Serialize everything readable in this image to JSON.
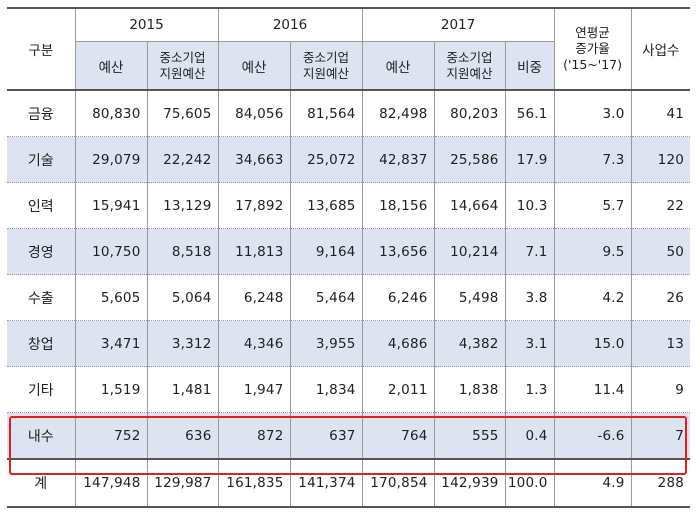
{
  "table": {
    "header": {
      "category": "구분",
      "years": [
        "2015",
        "2016",
        "2017"
      ],
      "budget": "예산",
      "sme_budget_line1": "중소기업",
      "sme_budget_line2": "지원예산",
      "share": "비중",
      "cagr_line1": "연평균",
      "cagr_line2": "증가율",
      "cagr_line3": "('15~'17)",
      "projects": "사업수"
    },
    "rows": [
      {
        "name": "금융",
        "b2015": "80,830",
        "s2015": "75,605",
        "b2016": "84,056",
        "s2016": "81,564",
        "b2017": "82,498",
        "s2017": "80,203",
        "share": "56.1",
        "cagr": "3.0",
        "projects": "41"
      },
      {
        "name": "기술",
        "b2015": "29,079",
        "s2015": "22,242",
        "b2016": "34,663",
        "s2016": "25,072",
        "b2017": "42,837",
        "s2017": "25,586",
        "share": "17.9",
        "cagr": "7.3",
        "projects": "120"
      },
      {
        "name": "인력",
        "b2015": "15,941",
        "s2015": "13,129",
        "b2016": "17,892",
        "s2016": "13,685",
        "b2017": "18,156",
        "s2017": "14,664",
        "share": "10.3",
        "cagr": "5.7",
        "projects": "22"
      },
      {
        "name": "경영",
        "b2015": "10,750",
        "s2015": "8,518",
        "b2016": "11,813",
        "s2016": "9,164",
        "b2017": "13,656",
        "s2017": "10,214",
        "share": "7.1",
        "cagr": "9.5",
        "projects": "50"
      },
      {
        "name": "수출",
        "b2015": "5,605",
        "s2015": "5,064",
        "b2016": "6,248",
        "s2016": "5,464",
        "b2017": "6,246",
        "s2017": "5,498",
        "share": "3.8",
        "cagr": "4.2",
        "projects": "26"
      },
      {
        "name": "창업",
        "b2015": "3,471",
        "s2015": "3,312",
        "b2016": "4,346",
        "s2016": "3,955",
        "b2017": "4,686",
        "s2017": "4,382",
        "share": "3.1",
        "cagr": "15.0",
        "projects": "13"
      },
      {
        "name": "기타",
        "b2015": "1,519",
        "s2015": "1,481",
        "b2016": "1,947",
        "s2016": "1,834",
        "b2017": "2,011",
        "s2017": "1,838",
        "share": "1.3",
        "cagr": "11.4",
        "projects": "9"
      },
      {
        "name": "내수",
        "b2015": "752",
        "s2015": "636",
        "b2016": "872",
        "s2016": "637",
        "b2017": "764",
        "s2017": "555",
        "share": "0.4",
        "cagr": "-6.6",
        "projects": "7"
      }
    ],
    "total": {
      "name": "계",
      "b2015": "147,948",
      "s2015": "129,987",
      "b2016": "161,835",
      "s2016": "141,374",
      "b2017": "170,854",
      "s2017": "142,939",
      "share": "100.0",
      "cagr": "4.9",
      "projects": "288"
    }
  },
  "highlight_color": "#e01f1f",
  "shade_color": "#dde3f1"
}
